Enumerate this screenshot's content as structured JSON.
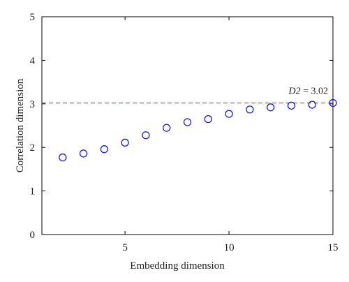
{
  "chart_data": {
    "type": "scatter",
    "title": "",
    "xlabel": "Embedding dimension",
    "ylabel": "Correlation dimension",
    "xlim": [
      1,
      15
    ],
    "ylim": [
      0,
      5
    ],
    "xticks": [
      5,
      10,
      15
    ],
    "yticks": [
      0,
      1,
      2,
      3,
      4,
      5
    ],
    "grid": false,
    "legend": "none",
    "series": [
      {
        "marker": "open-circle",
        "color": "#1a1aff",
        "x": [
          2,
          3,
          4,
          5,
          6,
          7,
          8,
          9,
          10,
          11,
          12,
          13,
          14,
          15
        ],
        "y": [
          1.77,
          1.86,
          1.96,
          2.11,
          2.28,
          2.45,
          2.58,
          2.65,
          2.77,
          2.87,
          2.92,
          2.96,
          2.98,
          3.02
        ]
      }
    ],
    "reference_line": {
      "y": 3.02,
      "style": "dashed",
      "color": "#e03030",
      "label_prefix": "D2",
      "label_suffix": " = 3.02"
    }
  }
}
